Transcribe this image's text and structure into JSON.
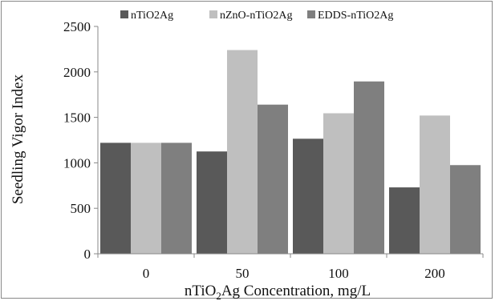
{
  "chart_data": {
    "type": "bar",
    "categories": [
      "0",
      "50",
      "100",
      "200"
    ],
    "series": [
      {
        "name": "nTiO2Ag",
        "color": "#595959",
        "values": [
          1220,
          1125,
          1265,
          730
        ]
      },
      {
        "name": "nZnO-nTiO2Ag",
        "color": "#bfbfbf",
        "values": [
          1220,
          2240,
          1545,
          1520
        ]
      },
      {
        "name": "EDDS-nTiO2Ag",
        "color": "#7f7f7f",
        "values": [
          1220,
          1640,
          1895,
          975
        ]
      }
    ],
    "ylabel": "Seedling Vigor Index",
    "xlabel": {
      "main": "nTiO",
      "sub": "2",
      "rest": "Ag Concentration, mg/L"
    },
    "ylim": [
      0,
      2500
    ],
    "yticks": [
      "0",
      "500",
      "1000",
      "1500",
      "2000",
      "2500"
    ],
    "grid": false,
    "legend_position": "top"
  }
}
